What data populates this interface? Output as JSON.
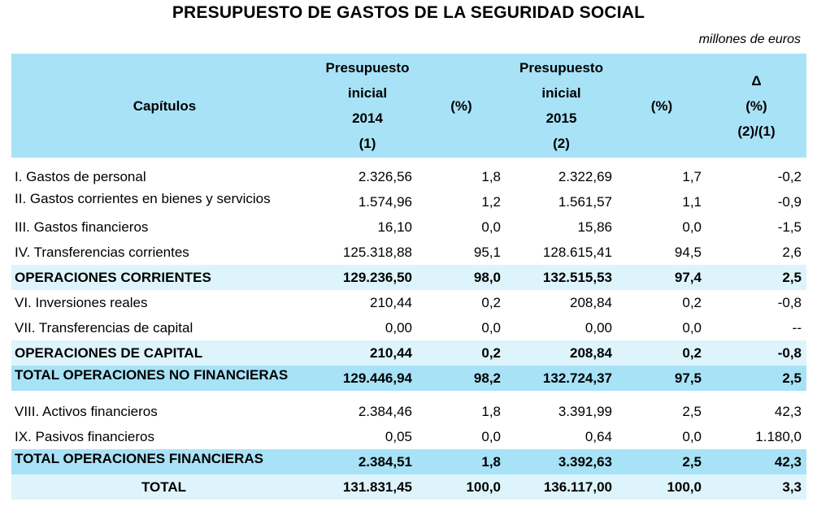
{
  "title": "PRESUPUESTO DE GASTOS DE LA SEGURIDAD SOCIAL",
  "units": "millones de euros",
  "header": {
    "col0": "Capítulos",
    "col1": [
      "Presupuesto",
      "inicial",
      "2014",
      "(1)"
    ],
    "col2": "(%)",
    "col3": [
      "Presupuesto",
      "inicial",
      "2015",
      "(2)"
    ],
    "col4": "(%)",
    "col5": [
      "Δ",
      "(%)",
      "(2)/(1)"
    ]
  },
  "rows": [
    {
      "label": "I. Gastos de personal",
      "b2014": "2.326,56",
      "p2014": "1,8",
      "b2015": "2.322,69",
      "p2015": "1,7",
      "delta": "-0,2"
    },
    {
      "label": "II. Gastos corrientes en bienes y servicios",
      "b2014": "1.574,96",
      "p2014": "1,2",
      "b2015": "1.561,57",
      "p2015": "1,1",
      "delta": "-0,9"
    },
    {
      "label": "III. Gastos financieros",
      "b2014": "16,10",
      "p2014": "0,0",
      "b2015": "15,86",
      "p2015": "0,0",
      "delta": "-1,5"
    },
    {
      "label": "IV. Transferencias corrientes",
      "b2014": "125.318,88",
      "p2014": "95,1",
      "b2015": "128.615,41",
      "p2015": "94,5",
      "delta": "2,6"
    },
    {
      "label": "OPERACIONES CORRIENTES",
      "b2014": "129.236,50",
      "p2014": "98,0",
      "b2015": "132.515,53",
      "p2015": "97,4",
      "delta": "2,5"
    },
    {
      "label": "VI. Inversiones reales",
      "b2014": "210,44",
      "p2014": "0,2",
      "b2015": "208,84",
      "p2015": "0,2",
      "delta": "-0,8"
    },
    {
      "label": "VII. Transferencias de capital",
      "b2014": "0,00",
      "p2014": "0,0",
      "b2015": "0,00",
      "p2015": "0,0",
      "delta": "--"
    },
    {
      "label": "OPERACIONES DE CAPITAL",
      "b2014": "210,44",
      "p2014": "0,2",
      "b2015": "208,84",
      "p2015": "0,2",
      "delta": "-0,8"
    },
    {
      "label": "TOTAL OPERACIONES NO FINANCIERAS",
      "b2014": "129.446,94",
      "p2014": "98,2",
      "b2015": "132.724,37",
      "p2015": "97,5",
      "delta": "2,5"
    },
    {
      "label": "VIII. Activos financieros",
      "b2014": "2.384,46",
      "p2014": "1,8",
      "b2015": "3.391,99",
      "p2015": "2,5",
      "delta": "42,3"
    },
    {
      "label": "IX. Pasivos financieros",
      "b2014": "0,05",
      "p2014": "0,0",
      "b2015": "0,64",
      "p2015": "0,0",
      "delta": "1.180,0"
    },
    {
      "label": "TOTAL OPERACIONES FINANCIERAS",
      "b2014": "2.384,51",
      "p2014": "1,8",
      "b2015": "3.392,63",
      "p2015": "2,5",
      "delta": "42,3"
    },
    {
      "label": "TOTAL",
      "b2014": "131.831,45",
      "p2014": "100,0",
      "b2015": "136.117,00",
      "p2015": "100,0",
      "delta": "3,3"
    }
  ],
  "colors": {
    "header_bg": "#a8e2f7",
    "subtotal_bg": "#def4fc"
  }
}
